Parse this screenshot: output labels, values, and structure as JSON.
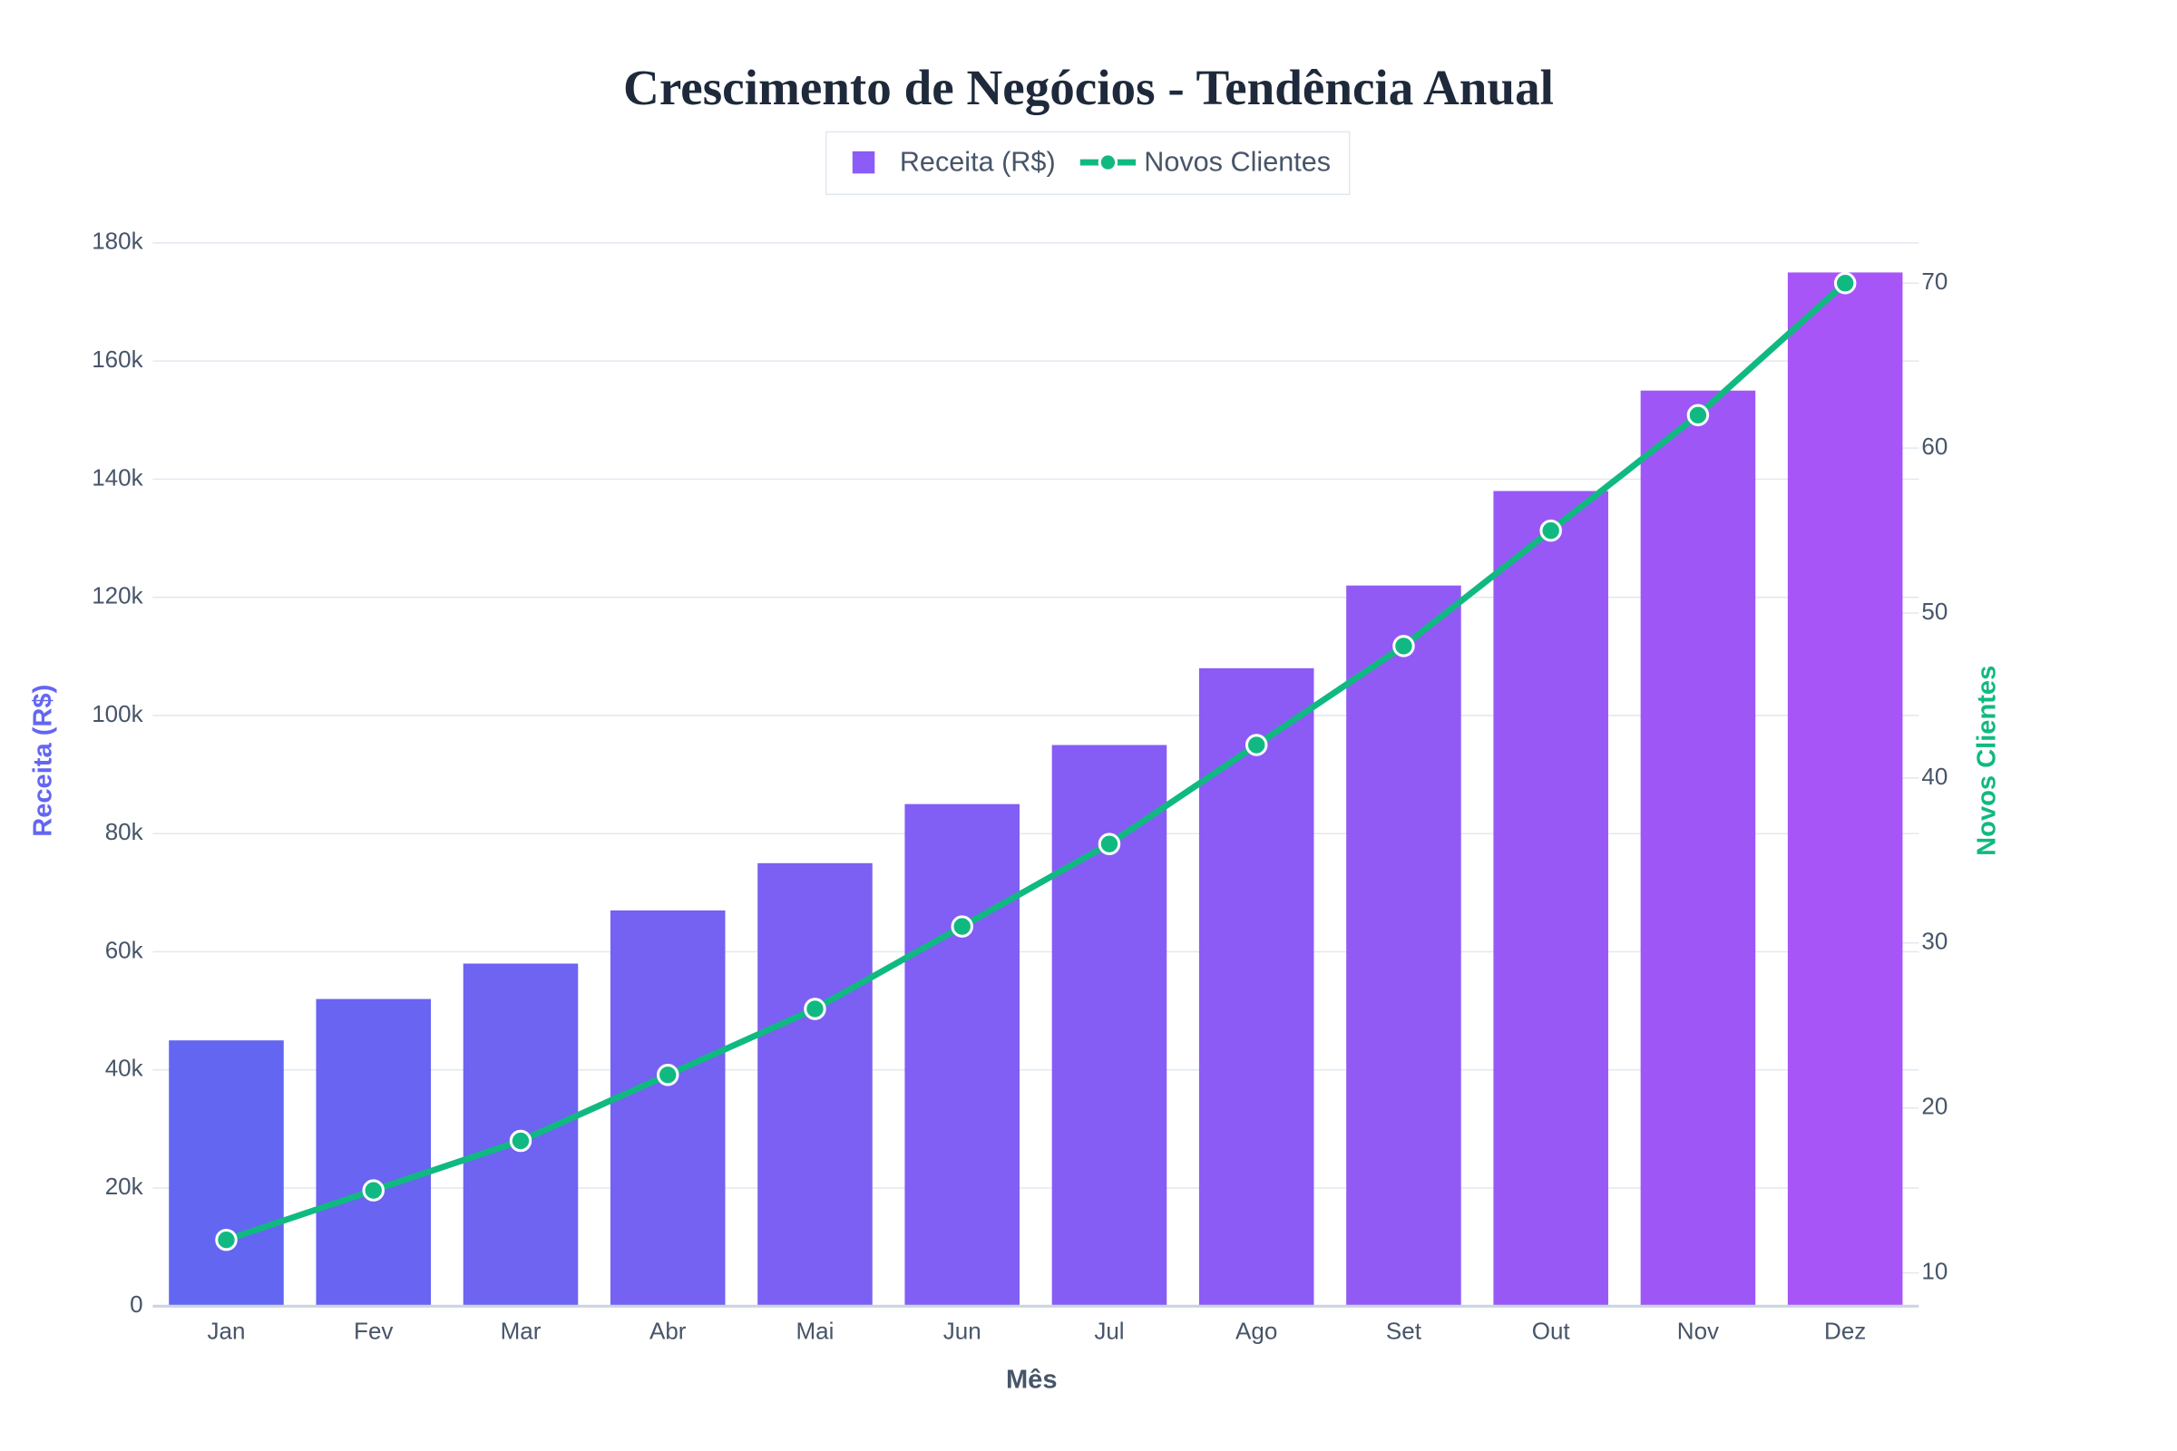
{
  "chart_data": {
    "type": "bar",
    "title": "Crescimento de Negócios - Tendência Anual",
    "x_label": "Mês",
    "y_label": "Receita (R$)",
    "y2_label": "Novos Clientes",
    "categories": [
      "Jan",
      "Fev",
      "Mar",
      "Abr",
      "Mai",
      "Jun",
      "Jul",
      "Ago",
      "Set",
      "Out",
      "Nov",
      "Dez"
    ],
    "series": [
      {
        "name": "Receita (R$)",
        "type": "bar",
        "color": "#8b5cf6",
        "colors": [
          "#6366f1",
          "#6964f1",
          "#6f63f2",
          "#7561f2",
          "#7b60f3",
          "#815ef4",
          "#865df4",
          "#8c5bf5",
          "#925af5",
          "#9858f6",
          "#9e57f6",
          "#a855f7"
        ],
        "values": [
          45000,
          52000,
          58000,
          67000,
          75000,
          85000,
          95000,
          108000,
          122000,
          138000,
          155000,
          175000
        ]
      },
      {
        "name": "Novos Clientes",
        "type": "line",
        "color": "#10b981",
        "axis": "y2",
        "values": [
          12,
          15,
          18,
          22,
          26,
          31,
          36,
          42,
          48,
          55,
          62,
          70
        ]
      }
    ],
    "ylim": [
      0,
      180000
    ],
    "yticks": [
      0,
      {
        "value": 20000,
        "label": "20k"
      },
      {
        "value": 40000,
        "label": "40k"
      },
      {
        "value": 60000,
        "label": "60k"
      },
      {
        "value": 80000,
        "label": "80k"
      },
      {
        "value": 100000,
        "label": "100k"
      },
      {
        "value": 120000,
        "label": "120k"
      },
      {
        "value": 140000,
        "label": "140k"
      },
      {
        "value": 160000,
        "label": "160k"
      },
      {
        "value": 180000,
        "label": "180k"
      }
    ],
    "y2lim": [
      7.98,
      72.44
    ],
    "y2ticks": [
      10,
      20,
      30,
      40,
      50,
      60,
      70
    ],
    "grid": true,
    "legend": "top"
  }
}
